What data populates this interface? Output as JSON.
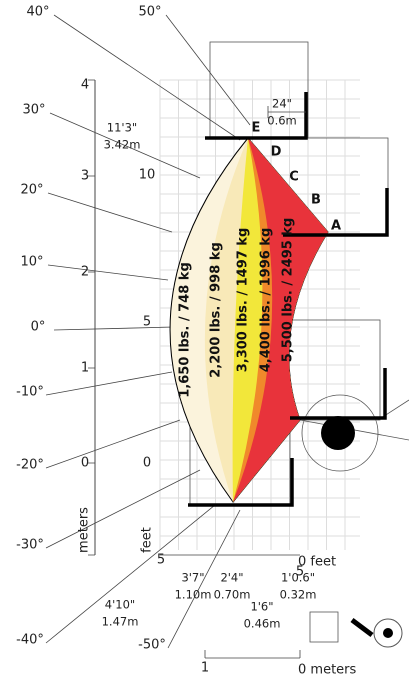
{
  "angles": [
    "40°",
    "50°",
    "30°",
    "20°",
    "10°",
    "0°",
    "-10°",
    "-20°",
    "-30°",
    "-40°",
    "-50°"
  ],
  "meters_axis": {
    "label": "meters",
    "ticks": [
      "4",
      "3",
      "2",
      "1",
      "0"
    ]
  },
  "feet_axis": {
    "label": "feet",
    "ticks": [
      "10",
      "5",
      "0"
    ]
  },
  "bottom_feet": {
    "left": "5",
    "right": "5",
    "zero": "0 feet"
  },
  "dimensions": [
    {
      "imperial": "11'3\"",
      "metric": "3.42m"
    },
    {
      "imperial": "24\"",
      "metric": "0.6m"
    },
    {
      "imperial": "3'7\"",
      "metric": "1.10m"
    },
    {
      "imperial": "4'10\"",
      "metric": "1.47m"
    },
    {
      "imperial": "2'4\"",
      "metric": "0.70m"
    },
    {
      "imperial": "1'6\"",
      "metric": "0.46m"
    },
    {
      "imperial": "1'0.6\"",
      "metric": "0.32m"
    }
  ],
  "points": [
    "E",
    "D",
    "C",
    "B",
    "A"
  ],
  "load_zones": [
    "1,650 lbs. / 748 kg",
    "2,200 lbs. / 998 kg",
    "3,300 lbs. / 1497 kg",
    "4,400 lbs. / 1996 kg",
    "5,500 lbs. / 2495 kg"
  ],
  "meter_scale": {
    "one": "1",
    "zero": "0 meters"
  }
}
